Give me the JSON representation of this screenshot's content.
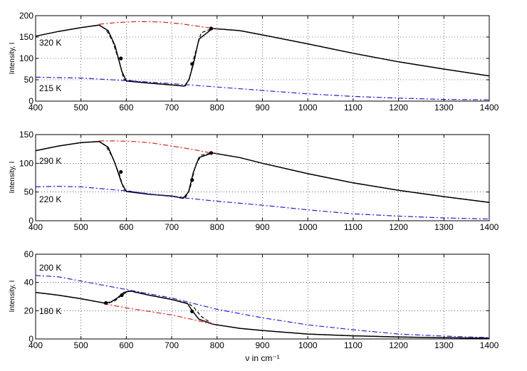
{
  "chart_data": [
    {
      "type": "line",
      "ylabel": "Intensity, I",
      "xlim": [
        400,
        1400
      ],
      "ylim": [
        0,
        200
      ],
      "xticks": [
        400,
        500,
        600,
        700,
        800,
        900,
        1000,
        1100,
        1200,
        1300,
        1400
      ],
      "yticks": [
        0,
        50,
        100,
        150,
        200
      ],
      "grid": true,
      "annotations": [
        "320 K",
        "215 K"
      ],
      "series": [
        {
          "style": "solid",
          "color": "#000000",
          "x": [
            400,
            450,
            500,
            540,
            560,
            575,
            590,
            600,
            650,
            700,
            728,
            738,
            748,
            760,
            790,
            850,
            900,
            1000,
            1100,
            1200,
            1300,
            1400
          ],
          "y": [
            152,
            163,
            172,
            178,
            165,
            130,
            70,
            47,
            42,
            38,
            35,
            50,
            88,
            145,
            170,
            165,
            155,
            134,
            112,
            92,
            75,
            59
          ]
        },
        {
          "style": "dashed",
          "color": "#000000",
          "x": [
            400,
            450,
            500,
            540,
            555,
            570,
            585,
            595,
            650,
            700,
            730,
            740,
            750,
            765,
            790,
            850,
            900,
            1000,
            1100,
            1200,
            1300,
            1400
          ],
          "y": [
            152,
            163,
            172,
            178,
            168,
            140,
            90,
            50,
            42,
            38,
            35,
            55,
            105,
            160,
            170,
            165,
            155,
            134,
            112,
            92,
            75,
            59
          ]
        },
        {
          "style": "dashdot",
          "color": "#e02020",
          "x": [
            540,
            580,
            620,
            650,
            680,
            720,
            760,
            800
          ],
          "y": [
            180,
            184,
            186,
            186,
            185,
            181,
            175,
            169
          ]
        },
        {
          "style": "dashdot",
          "color": "#2020e0",
          "x": [
            400,
            500,
            600,
            700,
            800,
            900,
            1000,
            1100,
            1200,
            1300,
            1400
          ],
          "y": [
            56,
            54,
            48,
            41,
            33,
            25,
            17,
            11,
            7,
            4,
            3
          ]
        },
        {
          "style": "markers",
          "color": "#000000",
          "x": [
            588,
            745,
            787
          ],
          "y": [
            100,
            87,
            170
          ]
        }
      ]
    },
    {
      "type": "line",
      "ylabel": "Intensity, I",
      "xlim": [
        400,
        1400
      ],
      "ylim": [
        0,
        150
      ],
      "xticks": [
        400,
        500,
        600,
        700,
        800,
        900,
        1000,
        1100,
        1200,
        1300,
        1400
      ],
      "yticks": [
        0,
        50,
        100,
        150
      ],
      "grid": true,
      "annotations": [
        "290 K",
        "220 K"
      ],
      "series": [
        {
          "style": "solid",
          "color": "#000000",
          "x": [
            400,
            450,
            500,
            540,
            560,
            575,
            590,
            600,
            650,
            700,
            725,
            737,
            748,
            760,
            790,
            850,
            900,
            1000,
            1100,
            1200,
            1300,
            1400
          ],
          "y": [
            122,
            130,
            136,
            138,
            128,
            100,
            65,
            51,
            46,
            43,
            39,
            50,
            85,
            110,
            118,
            110,
            100,
            82,
            66,
            53,
            42,
            32
          ]
        },
        {
          "style": "dashed",
          "color": "#000000",
          "x": [
            400,
            450,
            500,
            540,
            555,
            570,
            585,
            595,
            650,
            700,
            730,
            740,
            752,
            765,
            790,
            850,
            900,
            1000,
            1100,
            1200,
            1300,
            1400
          ],
          "y": [
            122,
            130,
            136,
            138,
            130,
            110,
            80,
            53,
            46,
            43,
            40,
            55,
            95,
            114,
            118,
            110,
            100,
            82,
            66,
            53,
            42,
            32
          ]
        },
        {
          "style": "dashdot",
          "color": "#e02020",
          "x": [
            540,
            580,
            620,
            660,
            700,
            740,
            780,
            800
          ],
          "y": [
            139,
            139,
            138,
            135,
            130,
            125,
            119,
            117
          ]
        },
        {
          "style": "dashdot",
          "color": "#2020e0",
          "x": [
            400,
            450,
            500,
            600,
            700,
            800,
            900,
            1000,
            1100,
            1200,
            1300,
            1400
          ],
          "y": [
            59,
            60,
            59,
            52,
            42,
            34,
            27,
            19,
            12,
            8,
            5,
            3
          ]
        },
        {
          "style": "markers",
          "color": "#000000",
          "x": [
            588,
            745,
            787
          ],
          "y": [
            85,
            71,
            118
          ]
        }
      ]
    },
    {
      "type": "line",
      "ylabel": "Intensity, I",
      "xlabel": "ν in cm⁻¹",
      "xlim": [
        400,
        1400
      ],
      "ylim": [
        0,
        60
      ],
      "xticks": [
        400,
        500,
        600,
        700,
        800,
        900,
        1000,
        1100,
        1200,
        1300,
        1400
      ],
      "yticks": [
        0,
        20,
        40,
        60
      ],
      "grid": true,
      "annotations": [
        "200 K",
        "180 K"
      ],
      "series": [
        {
          "style": "solid",
          "color": "#000000",
          "x": [
            400,
            450,
            500,
            550,
            565,
            580,
            595,
            610,
            650,
            700,
            735,
            745,
            760,
            790,
            850,
            900,
            1000,
            1100,
            1200,
            1300,
            1400
          ],
          "y": [
            33,
            31,
            28.5,
            25.5,
            26,
            29,
            33,
            34,
            31,
            28,
            25,
            20,
            14,
            10.5,
            7.5,
            6,
            3.5,
            2.2,
            1.4,
            0.9,
            0.5
          ]
        },
        {
          "style": "dashed",
          "color": "#000000",
          "x": [
            400,
            450,
            500,
            550,
            560,
            575,
            590,
            605,
            650,
            700,
            738,
            750,
            765,
            790,
            850,
            900,
            1000,
            1100,
            1200,
            1300,
            1400
          ],
          "y": [
            33,
            31,
            28.5,
            25.5,
            25.3,
            27,
            31,
            34,
            31,
            28,
            25,
            22,
            16,
            10.5,
            7.5,
            6,
            3.5,
            2.2,
            1.4,
            0.9,
            0.5
          ]
        },
        {
          "style": "dashdot",
          "color": "#e02020",
          "x": [
            550,
            600,
            650,
            700,
            750,
            790
          ],
          "y": [
            25,
            22,
            19.5,
            17,
            13.5,
            10.5
          ]
        },
        {
          "style": "dashdot",
          "color": "#2020e0",
          "x": [
            400,
            450,
            500,
            600,
            700,
            800,
            900,
            1000,
            1100,
            1200,
            1300,
            1400
          ],
          "y": [
            45,
            44,
            41,
            35,
            29,
            21,
            15,
            10,
            6.5,
            3.5,
            2,
            1
          ]
        },
        {
          "style": "markers",
          "color": "#000000",
          "x": [
            555,
            590,
            745
          ],
          "y": [
            25.5,
            31,
            19.5
          ]
        }
      ]
    }
  ]
}
